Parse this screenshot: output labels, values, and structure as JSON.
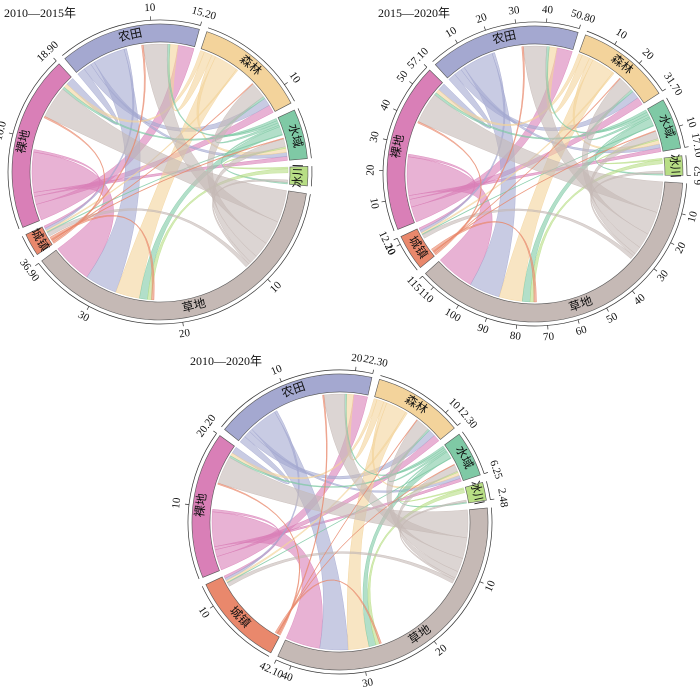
{
  "chart_data": [
    {
      "type": "chord",
      "title": "2010—2015年",
      "nodes": [
        {
          "name": "裸地",
          "color": "#d97fb7",
          "value": 18.9,
          "value_label": "18.90",
          "ticks": [
            {
              "value": 10,
              "label": "10.0"
            }
          ],
          "flows": [
            0,
            2,
            1,
            0.5,
            0,
            5,
            0.3
          ]
        },
        {
          "name": "农田",
          "color": "#a4a8d0",
          "value": 15.2,
          "value_label": "15.20",
          "ticks": [
            10
          ],
          "flows": [
            1,
            0,
            1,
            0.5,
            0,
            4,
            0.3
          ]
        },
        {
          "name": "森林",
          "color": "#f3d39b",
          "value": 12,
          "ticks": [
            10
          ],
          "flows": [
            0.5,
            1,
            0,
            0.5,
            0,
            3,
            0.2
          ]
        },
        {
          "name": "水域",
          "color": "#7fc9a5",
          "value": 5.36,
          "ticks": [],
          "flows": [
            0.3,
            0.3,
            0.3,
            0,
            0.2,
            1,
            0.1
          ]
        },
        {
          "name": "冰川",
          "color": "#b8de85",
          "value": 2.08,
          "ticks": [],
          "flows": [
            0,
            0,
            0,
            0.2,
            0,
            0.5,
            0
          ]
        },
        {
          "name": "草地",
          "color": "#c5b9b5",
          "value": 36.9,
          "value_label": "36.90",
          "ticks": [
            10,
            20,
            30
          ],
          "flows": [
            4,
            3,
            2,
            1,
            0.3,
            0,
            0.5
          ]
        },
        {
          "name": "城镇",
          "color": "#e9886c",
          "value": 2.45,
          "ticks": [],
          "flows": [
            0.2,
            0.2,
            0.1,
            0.1,
            0,
            0.3,
            0
          ]
        }
      ]
    },
    {
      "type": "chord",
      "title": "2015—2020年",
      "nodes": [
        {
          "name": "裸地",
          "color": "#d97fb7",
          "value": 57.1,
          "value_label": "57.10",
          "ticks": [
            10,
            20,
            30,
            40,
            50
          ],
          "flows": [
            0,
            6,
            3,
            1.5,
            0,
            15,
            1
          ]
        },
        {
          "name": "农田",
          "color": "#a4a8d0",
          "value": 50.8,
          "value_label": "50.80",
          "ticks": [
            10,
            20,
            30,
            40
          ],
          "flows": [
            3,
            0,
            3,
            1.5,
            0,
            12,
            1
          ]
        },
        {
          "name": "森林",
          "color": "#f3d39b",
          "value": 31.7,
          "value_label": "31.70",
          "ticks": [
            10,
            20
          ],
          "flows": [
            1.5,
            3,
            0,
            1.5,
            0,
            9,
            0.6
          ]
        },
        {
          "name": "水域",
          "color": "#7fc9a5",
          "value": 17.1,
          "value_label": "17.10",
          "ticks": [
            10
          ],
          "flows": [
            1,
            1,
            1,
            0,
            0.6,
            3,
            0.3
          ]
        },
        {
          "name": "冰川",
          "color": "#b8de85",
          "value": 6.52,
          "value_label": "6.52",
          "ticks": [],
          "flows": [
            0,
            0,
            0,
            0.6,
            0,
            1.5,
            0
          ]
        },
        {
          "name": "草地",
          "color": "#c5b9b5",
          "value": 115,
          "value_label": "115",
          "ticks": [
            10,
            20,
            30,
            40,
            50,
            60,
            70,
            80,
            90,
            100,
            110
          ],
          "flows": [
            12,
            9,
            6,
            3,
            1,
            0,
            1.5
          ]
        },
        {
          "name": "城镇",
          "color": "#e9886c",
          "value": 12.2,
          "value_label": "12.20",
          "ticks": [
            10
          ],
          "flows": [
            0.6,
            0.6,
            0.3,
            0.3,
            0,
            1,
            0
          ]
        }
      ]
    },
    {
      "type": "chord",
      "title": "2010—2020年",
      "nodes": [
        {
          "name": "裸地",
          "color": "#d97fb7",
          "value": 20.2,
          "value_label": "20.20",
          "ticks": [
            10
          ],
          "flows": [
            0,
            2.2,
            1.1,
            0.5,
            0,
            5.5,
            0.4
          ]
        },
        {
          "name": "农田",
          "color": "#a4a8d0",
          "value": 22.3,
          "value_label": "22.30",
          "ticks": [
            10,
            20
          ],
          "flows": [
            1.1,
            0,
            1.1,
            0.5,
            0,
            4.5,
            0.4
          ]
        },
        {
          "name": "森林",
          "color": "#f3d39b",
          "value": 12.3,
          "value_label": "12.30",
          "ticks": [
            10
          ],
          "flows": [
            0.5,
            1.1,
            0,
            0.5,
            0,
            3.3,
            0.3
          ]
        },
        {
          "name": "水域",
          "color": "#7fc9a5",
          "value": 6.25,
          "value_label": "6.25",
          "ticks": [],
          "flows": [
            0.3,
            0.3,
            0.3,
            0,
            0.2,
            1.1,
            0.1
          ]
        },
        {
          "name": "冰川",
          "color": "#b8de85",
          "value": 2.48,
          "value_label": "2.48",
          "ticks": [],
          "flows": [
            0,
            0,
            0,
            0.2,
            0,
            0.6,
            0
          ]
        },
        {
          "name": "草地",
          "color": "#c5b9b5",
          "value": 42.1,
          "value_label": "42.10",
          "ticks": [
            10,
            20,
            30,
            40
          ],
          "flows": [
            4.4,
            3.3,
            2.2,
            1.1,
            0.3,
            0,
            0.6
          ]
        },
        {
          "name": "城镇",
          "color": "#e9886c",
          "value": 13,
          "ticks": [
            10
          ],
          "flows": [
            0.2,
            0.2,
            0.1,
            0.1,
            0,
            0.3,
            0
          ]
        }
      ]
    }
  ]
}
